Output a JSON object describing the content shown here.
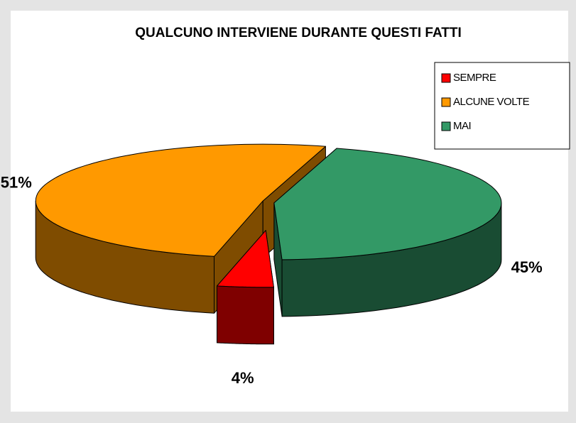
{
  "chart_data": {
    "type": "pie3d",
    "title": "QUALCUNO INTERVIENE DURANTE QUESTI FATTI",
    "categories": [
      "SEMPRE",
      "ALCUNE VOLTE",
      "MAI"
    ],
    "values": [
      4,
      51,
      45
    ],
    "value_labels": [
      "4%",
      "51%",
      "45%"
    ],
    "colors": [
      "#ff0000",
      "#ff9900",
      "#339966"
    ],
    "legend": "top-right"
  }
}
